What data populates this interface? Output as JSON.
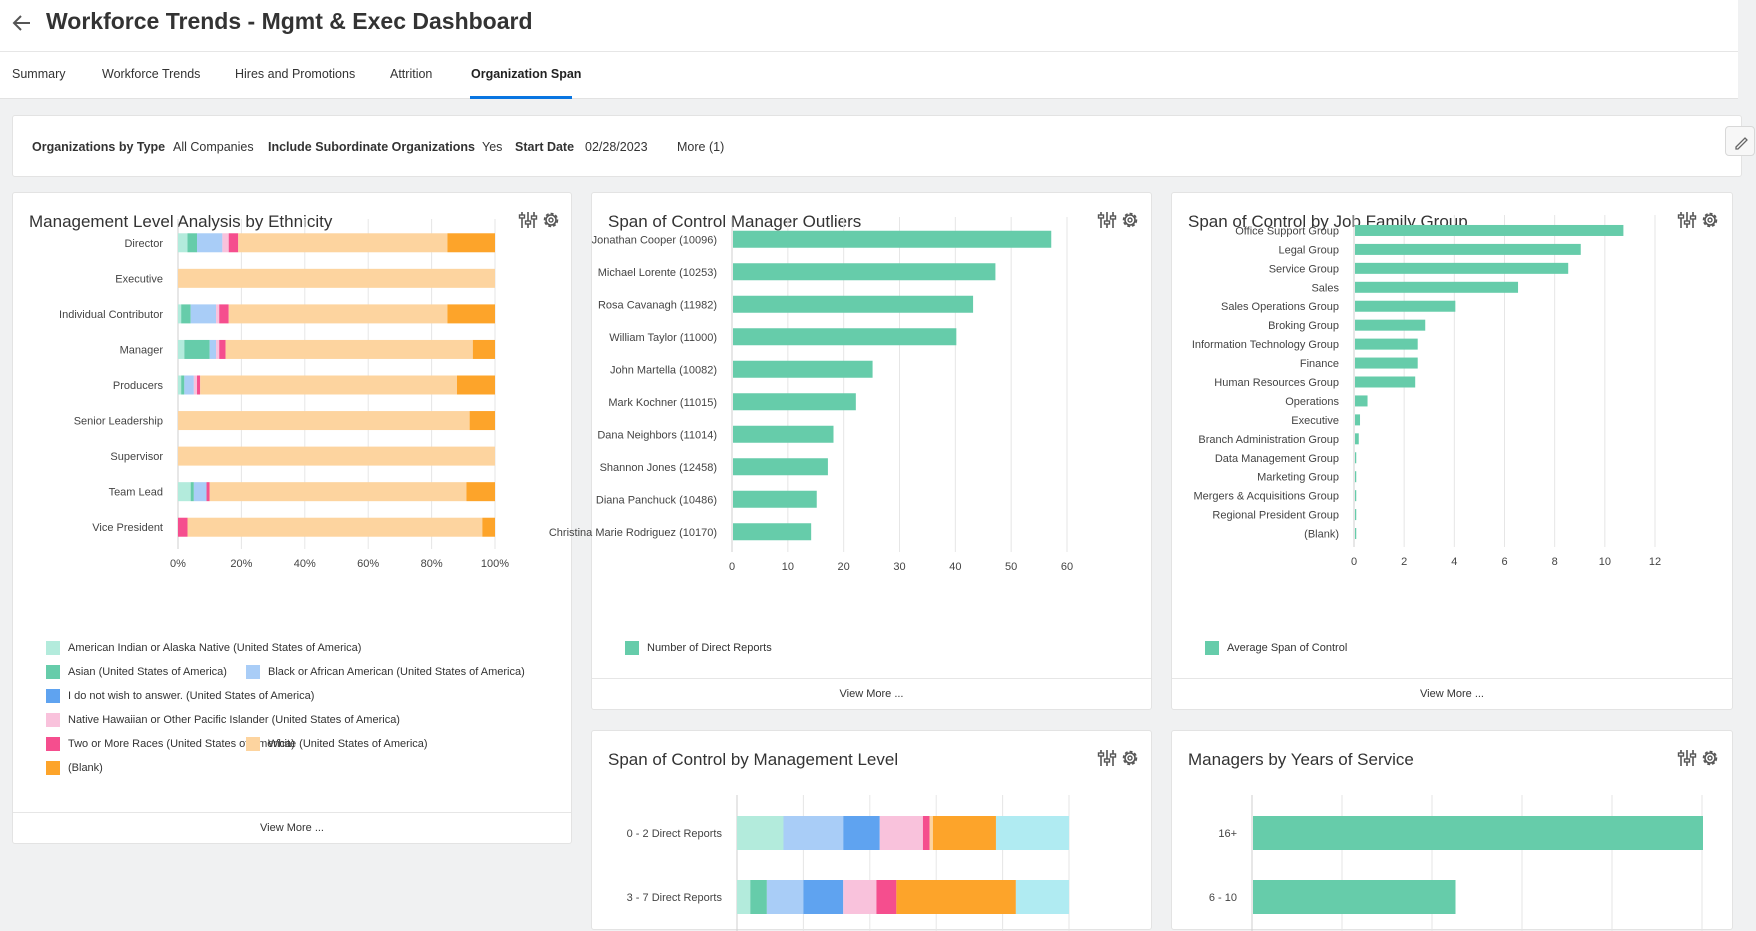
{
  "header": {
    "title": "Workforce Trends - Mgmt & Exec Dashboard"
  },
  "tabs": [
    {
      "label": "Summary"
    },
    {
      "label": "Workforce Trends"
    },
    {
      "label": "Hires and Promotions"
    },
    {
      "label": "Attrition"
    },
    {
      "label": "Organization Span"
    }
  ],
  "filters": {
    "org_type_label": "Organizations by Type",
    "org_type_value": "All Companies",
    "subordinate_label": "Include Subordinate Organizations",
    "subordinate_value": "Yes",
    "start_date_label": "Start Date",
    "start_date_value": "02/28/2023",
    "more": "More (1)"
  },
  "icons": {
    "back": "arrow-left-icon",
    "settings": "sliders-icon",
    "gear": "gear-icon",
    "edit": "pencil-icon"
  },
  "colors": {
    "green": "#66ccaa",
    "blue_accent": "#0875e1"
  },
  "cards": {
    "ethnicity": {
      "title": "Management Level Analysis by Ethnicity",
      "view_more": "View More ..."
    },
    "outliers": {
      "title": "Span of Control Manager Outliers",
      "view_more": "View More ..."
    },
    "job_family": {
      "title": "Span of Control by Job Family Group",
      "view_more": "View More ..."
    },
    "mgmt_level": {
      "title": "Span of Control by Management Level"
    },
    "years": {
      "title": "Managers by Years of Service"
    }
  },
  "chart_data": [
    {
      "id": "ethnicity",
      "type": "bar",
      "orientation": "horizontal",
      "stacked": "percent",
      "categories": [
        "Director",
        "Executive",
        "Individual Contributor",
        "Manager",
        "Producers",
        "Senior Leadership",
        "Supervisor",
        "Team Lead",
        "Vice President"
      ],
      "series": [
        {
          "name": "American Indian or Alaska Native (United States of America)",
          "color": "#b3ebdc",
          "values": [
            3,
            0,
            1,
            2,
            1,
            0,
            0,
            4,
            0
          ]
        },
        {
          "name": "Asian (United States of America)",
          "color": "#66ccaa",
          "values": [
            3,
            0,
            3,
            8,
            1,
            0,
            0,
            1,
            0
          ]
        },
        {
          "name": "Black or African American (United States of America)",
          "color": "#a9cdf7",
          "values": [
            8,
            0,
            8,
            2,
            3,
            0,
            0,
            4,
            0
          ]
        },
        {
          "name": "I do not wish to answer. (United States of America)",
          "color": "#5fa3f0",
          "values": [
            0,
            0,
            0,
            0,
            0,
            0,
            0,
            0,
            0
          ]
        },
        {
          "name": "Native Hawaiian or Other Pacific Islander (United States of America)",
          "color": "#f9c2dc",
          "values": [
            2,
            0,
            1,
            1,
            1,
            0,
            0,
            0,
            0
          ]
        },
        {
          "name": "Two or More Races (United States of America)",
          "color": "#f54e8e",
          "values": [
            3,
            0,
            3,
            2,
            1,
            0,
            0,
            1,
            3
          ]
        },
        {
          "name": "White (United States of America)",
          "color": "#fdd49f",
          "values": [
            66,
            100,
            69,
            78,
            81,
            92,
            100,
            81,
            93
          ]
        },
        {
          "name": "(Blank)",
          "color": "#fda42a",
          "values": [
            15,
            0,
            15,
            7,
            12,
            8,
            0,
            9,
            4
          ]
        }
      ],
      "xticks": [
        "0%",
        "20%",
        "40%",
        "60%",
        "80%",
        "100%"
      ],
      "xlim": [
        0,
        100
      ],
      "legend_layout": [
        [
          0
        ],
        [
          1,
          2
        ],
        [
          3
        ],
        [
          4
        ],
        [
          5,
          6
        ],
        [
          7
        ]
      ]
    },
    {
      "id": "outliers",
      "type": "bar",
      "orientation": "horizontal",
      "categories": [
        "Jonathan Cooper (10096)",
        "Michael Lorente (10253)",
        "Rosa Cavanagh (11982)",
        "William Taylor (11000)",
        "John Martella (10082)",
        "Mark Kochner (11015)",
        "Dana Neighbors (11014)",
        "Shannon Jones (12458)",
        "Diana Panchuck (10486)",
        "Christina Marie Rodriguez (10170)"
      ],
      "series": [
        {
          "name": "Number of Direct Reports",
          "color": "#66ccaa",
          "values": [
            57,
            47,
            43,
            40,
            25,
            22,
            18,
            17,
            15,
            14
          ]
        }
      ],
      "xticks": [
        "0",
        "10",
        "20",
        "30",
        "40",
        "50",
        "60"
      ],
      "xlim": [
        0,
        60
      ]
    },
    {
      "id": "job_family",
      "type": "bar",
      "orientation": "horizontal",
      "categories": [
        "Office Support Group",
        "Legal Group",
        "Service Group",
        "Sales",
        "Sales Operations Group",
        "Broking Group",
        "Information Technology Group",
        "Finance",
        "Human Resources Group",
        "Operations",
        "Executive",
        "Branch Administration Group",
        "Data Management Group",
        "Marketing Group",
        "Mergers & Acquisitions Group",
        "Regional President Group",
        "(Blank)"
      ],
      "series": [
        {
          "name": "Average Span of Control",
          "color": "#66ccaa",
          "values": [
            10.7,
            9.0,
            8.5,
            6.5,
            4.0,
            2.8,
            2.5,
            2.5,
            2.4,
            0.5,
            0.2,
            0.15,
            0.05,
            0.05,
            0.05,
            0.05,
            0.05
          ]
        }
      ],
      "xticks": [
        "0",
        "2",
        "4",
        "6",
        "8",
        "10",
        "12"
      ],
      "xlim": [
        0,
        12
      ]
    },
    {
      "id": "mgmt_level",
      "type": "bar",
      "orientation": "horizontal",
      "stacked": "percent",
      "categories": [
        "0 - 2 Direct Reports",
        "3 - 7 Direct Reports"
      ],
      "series": [
        {
          "color": "#b3ebdc",
          "values": [
            14,
            4
          ]
        },
        {
          "color": "#66ccaa",
          "values": [
            0,
            5
          ]
        },
        {
          "color": "#a9cdf7",
          "values": [
            18,
            11
          ]
        },
        {
          "color": "#5fa3f0",
          "values": [
            11,
            12
          ]
        },
        {
          "color": "#f9c2dc",
          "values": [
            13,
            10
          ]
        },
        {
          "color": "#f54e8e",
          "values": [
            2,
            6
          ]
        },
        {
          "color": "#fdd49f",
          "values": [
            1,
            0
          ]
        },
        {
          "color": "#fda42a",
          "values": [
            19,
            36
          ]
        },
        {
          "color": "#b0ebf2",
          "values": [
            22,
            16
          ]
        }
      ],
      "xlim": [
        0,
        100
      ]
    },
    {
      "id": "years",
      "type": "bar",
      "orientation": "horizontal",
      "categories": [
        "16+",
        "6 - 10"
      ],
      "series": [
        {
          "color": "#66ccaa",
          "values": [
            100,
            45
          ]
        }
      ],
      "xlim": [
        0,
        100
      ]
    }
  ]
}
